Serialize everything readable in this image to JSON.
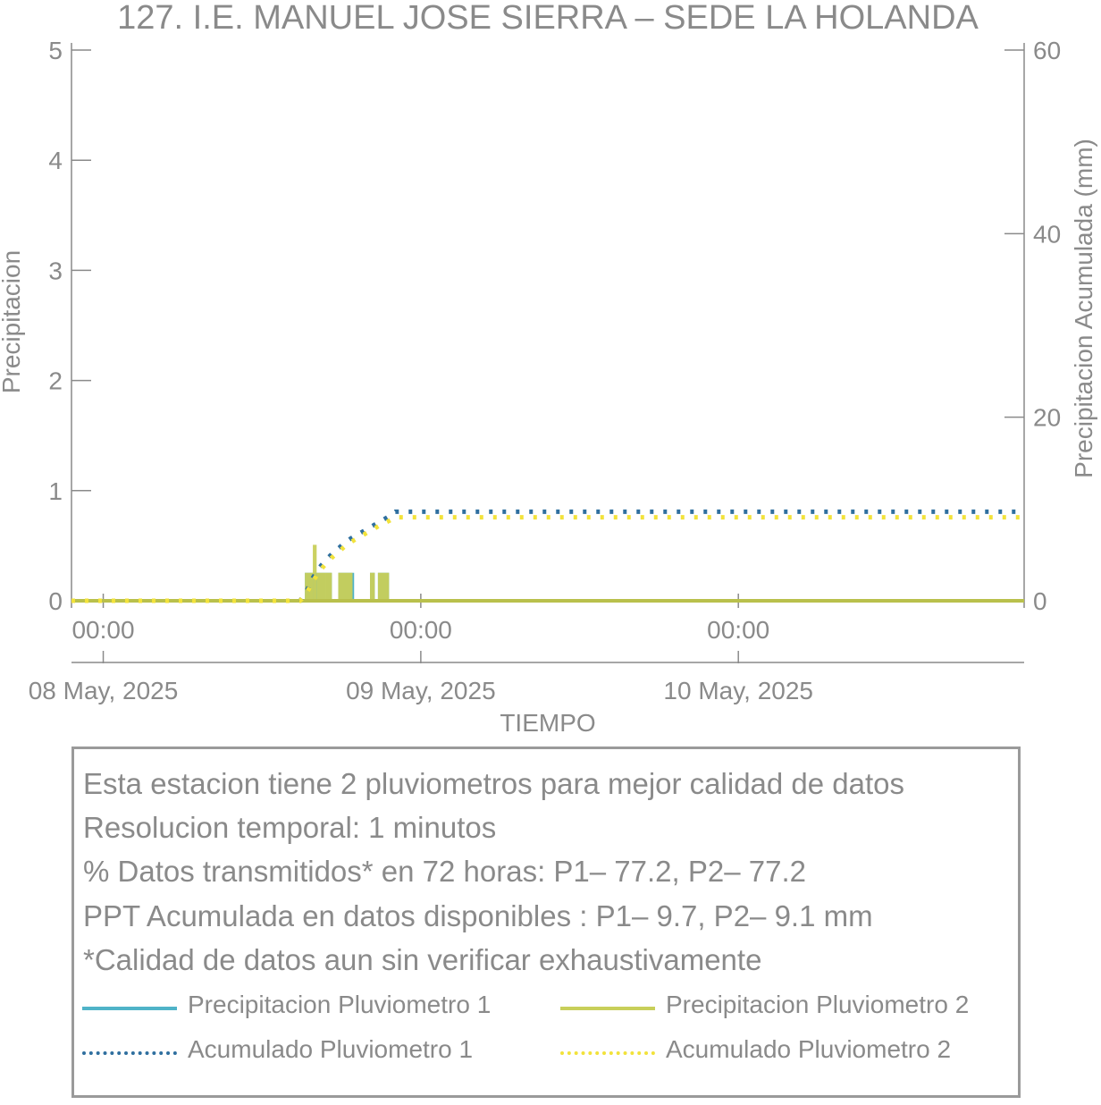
{
  "chart_data": {
    "type": "bar",
    "title": "127. I.E. MANUEL JOSE SIERRA – SEDE LA HOLANDA",
    "xlabel": "TIEMPO",
    "ylabel": "Precipitacion",
    "y2label": "Precipitacion Acumulada (mm)",
    "ylim": [
      0,
      5
    ],
    "y2lim": [
      0,
      60
    ],
    "yticks": [
      "0",
      "1",
      "2",
      "3",
      "4",
      "5"
    ],
    "y2ticks": [
      "0",
      "20",
      "40",
      "60"
    ],
    "xlim_hours": [
      -1,
      29
    ],
    "xticks": [
      {
        "hour": 0,
        "time": "00:00",
        "date": "08 May, 2025"
      },
      {
        "hour": 10,
        "time": "00:00",
        "date": "09 May, 2025"
      },
      {
        "hour": 20,
        "time": "00:00",
        "date": "10 May, 2025"
      }
    ],
    "grid": false,
    "series": [
      {
        "name": "Precipitacion Pluviometro 1",
        "color": "#4fb3c8",
        "style": "solid",
        "bars": [
          [
            6.35,
            6.6,
            0.254
          ],
          [
            6.6,
            6.75,
            0.254
          ],
          [
            6.75,
            7.0,
            0.254
          ],
          [
            7.0,
            7.2,
            0.254
          ],
          [
            7.4,
            7.85,
            0.254
          ],
          [
            7.85,
            7.9,
            0.254
          ],
          [
            8.4,
            8.55,
            0.254
          ],
          [
            8.65,
            9.0,
            0.254
          ]
        ]
      },
      {
        "name": "Precipitacion Pluviometro 2",
        "color": "#c8cf5a",
        "style": "solid",
        "bars": [
          [
            6.35,
            6.6,
            0.254
          ],
          [
            6.6,
            6.72,
            0.508
          ],
          [
            6.72,
            7.2,
            0.254
          ],
          [
            7.4,
            7.85,
            0.254
          ],
          [
            8.4,
            8.55,
            0.254
          ],
          [
            8.65,
            9.0,
            0.254
          ]
        ]
      },
      {
        "name": "Acumulado Pluviometro 1",
        "color": "#2f6f9f",
        "style": "dotted",
        "points": [
          [
            -1,
            0
          ],
          [
            6.2,
            0
          ],
          [
            6.4,
            1.0
          ],
          [
            6.6,
            2.5
          ],
          [
            6.8,
            3.6
          ],
          [
            7.0,
            4.4
          ],
          [
            7.2,
            5.1
          ],
          [
            7.4,
            5.7
          ],
          [
            7.6,
            6.3
          ],
          [
            7.8,
            6.8
          ],
          [
            8.0,
            7.2
          ],
          [
            8.2,
            7.6
          ],
          [
            8.4,
            8.0
          ],
          [
            8.6,
            8.4
          ],
          [
            8.8,
            8.8
          ],
          [
            9.0,
            9.2
          ],
          [
            9.2,
            9.7
          ],
          [
            29,
            9.7
          ]
        ]
      },
      {
        "name": "Acumulado Pluviometro 2",
        "color": "#f2e23a",
        "style": "dotted",
        "points": [
          [
            -1,
            0
          ],
          [
            6.2,
            0
          ],
          [
            6.4,
            0.8
          ],
          [
            6.6,
            2.1
          ],
          [
            6.8,
            3.2
          ],
          [
            7.0,
            4.0
          ],
          [
            7.2,
            4.7
          ],
          [
            7.4,
            5.3
          ],
          [
            7.6,
            5.9
          ],
          [
            7.8,
            6.4
          ],
          [
            8.0,
            6.8
          ],
          [
            8.2,
            7.2
          ],
          [
            8.4,
            7.6
          ],
          [
            8.6,
            8.0
          ],
          [
            8.8,
            8.4
          ],
          [
            9.0,
            8.7
          ],
          [
            9.2,
            9.1
          ],
          [
            29,
            9.1
          ]
        ]
      }
    ]
  },
  "info": {
    "lines": [
      "Esta estacion tiene 2 pluviometros para mejor calidad de datos",
      "Resolucion temporal: 1 minutos",
      "% Datos transmitidos* en 72 horas: P1– 77.2, P2– 77.2",
      "PPT Acumulada en datos disponibles : P1–  9.7, P2–  9.1 mm",
      "*Calidad de datos aun sin verificar exhaustivamente"
    ]
  },
  "legend": {
    "items": [
      {
        "label": "Precipitacion Pluviometro 1",
        "color": "#4fb3c8",
        "style": "solid"
      },
      {
        "label": "Precipitacion Pluviometro 2",
        "color": "#c8cf5a",
        "style": "solid"
      },
      {
        "label": "Acumulado Pluviometro 1",
        "color": "#2f6f9f",
        "style": "dotted"
      },
      {
        "label": "Acumulado Pluviometro 2",
        "color": "#f2e23a",
        "style": "dotted"
      }
    ]
  }
}
